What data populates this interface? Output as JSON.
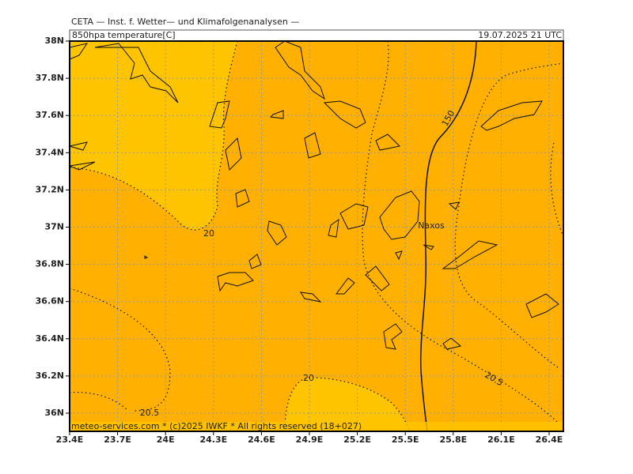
{
  "header": {
    "title": "CETA — Inst. f. Wetter— und Klimafolgenanalysen —",
    "field": "850hpa temperature[C]",
    "time": "19.07.2025 21 UTC"
  },
  "map": {
    "lon_ticks": [
      "23.4E",
      "23.7E",
      "24E",
      "24.3E",
      "24.6E",
      "24.9E",
      "25.2E",
      "25.5E",
      "25.8E",
      "26.1E",
      "26.4E"
    ],
    "lat_ticks": [
      "38N",
      "37.8N",
      "37.6N",
      "37.4N",
      "37.2N",
      "37N",
      "36.8N",
      "36.6N",
      "36.4N",
      "36.2N",
      "36N"
    ],
    "contour_labels": [
      "20",
      "20",
      "20.5",
      "20.5",
      "150"
    ],
    "places": [
      "Naxos"
    ]
  },
  "footer": "meteo-services.com * (c)2025 IWKF * All rights reserved (18+027)"
}
